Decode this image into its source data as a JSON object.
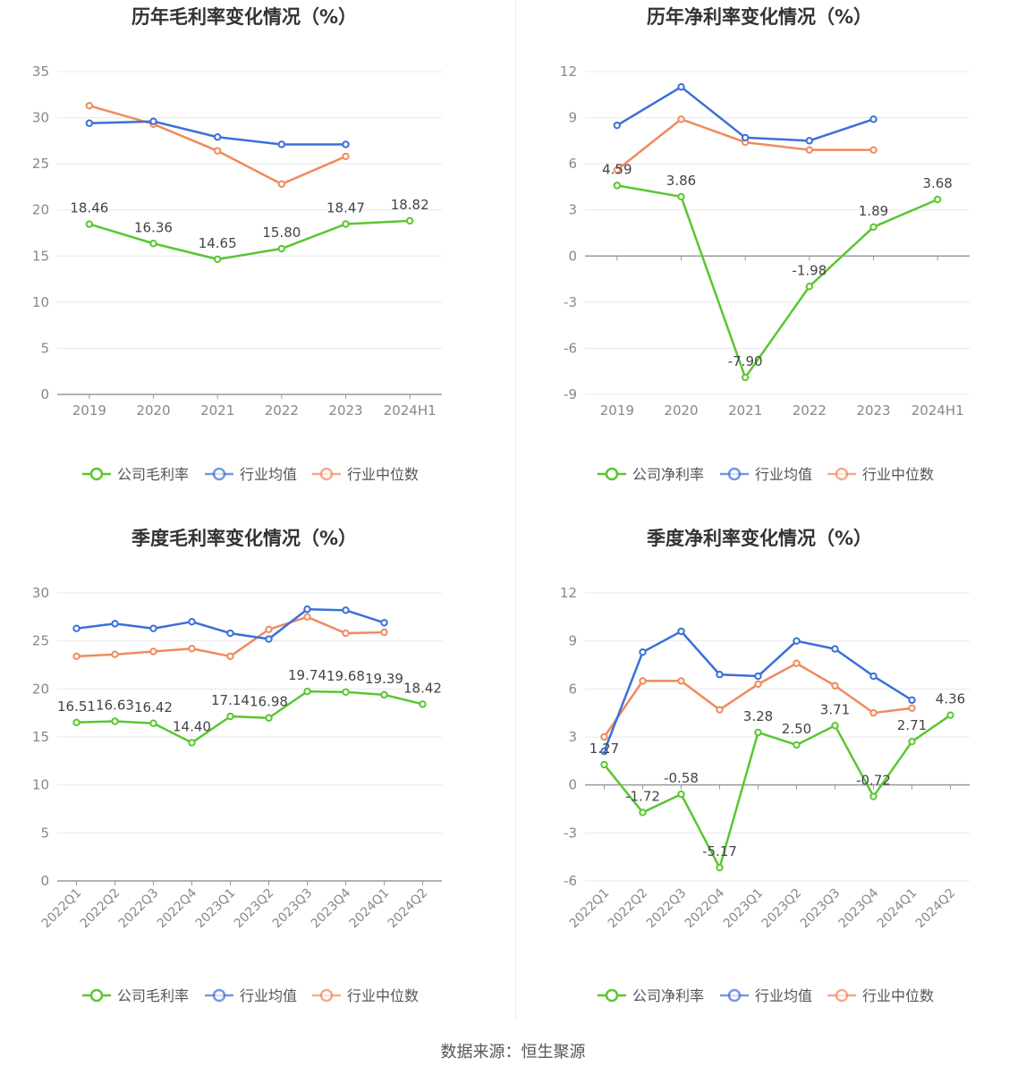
{
  "source": "数据来源：恒生聚源",
  "colors": {
    "company": "#5ac631",
    "avg": "#3b6fd8",
    "median": "#f08a5d",
    "grid": "#e8e8ee",
    "axis": "#999999",
    "tick_text": "#888888",
    "label_text": "#444444"
  },
  "legend": {
    "company_gross": "公司毛利率",
    "company_net": "公司净利率",
    "avg": "行业均值",
    "median": "行业中位数"
  },
  "chart_data": [
    {
      "id": "annual-gross",
      "type": "line",
      "title": "历年毛利率变化情况（%）",
      "categories": [
        "2019",
        "2020",
        "2021",
        "2022",
        "2023",
        "2024H1"
      ],
      "ylim": [
        0,
        35
      ],
      "yticks": [
        0,
        5,
        10,
        15,
        20,
        25,
        30,
        35
      ],
      "series": [
        {
          "name": "公司毛利率",
          "color": "#5ac631",
          "values": [
            18.46,
            16.36,
            14.65,
            15.8,
            18.47,
            18.82
          ],
          "labels": [
            "18.46",
            "16.36",
            "14.65",
            "15.80",
            "18.47",
            "18.82"
          ]
        },
        {
          "name": "行业均值",
          "color": "#3b6fd8",
          "values": [
            29.4,
            29.6,
            27.9,
            27.1,
            27.1,
            null
          ]
        },
        {
          "name": "行业中位数",
          "color": "#f08a5d",
          "values": [
            31.3,
            29.3,
            26.4,
            22.8,
            25.8,
            null
          ]
        }
      ]
    },
    {
      "id": "annual-net",
      "type": "line",
      "title": "历年净利率变化情况（%）",
      "categories": [
        "2019",
        "2020",
        "2021",
        "2022",
        "2023",
        "2024H1"
      ],
      "ylim": [
        -9,
        12
      ],
      "yticks": [
        -9,
        -6,
        -3,
        0,
        3,
        6,
        9,
        12
      ],
      "series": [
        {
          "name": "公司净利率",
          "color": "#5ac631",
          "values": [
            4.59,
            3.86,
            -7.9,
            -1.98,
            1.89,
            3.68
          ],
          "labels": [
            "4.59",
            "3.86",
            "-7.90",
            "-1.98",
            "1.89",
            "3.68"
          ]
        },
        {
          "name": "行业均值",
          "color": "#3b6fd8",
          "values": [
            8.5,
            11.0,
            7.7,
            7.5,
            8.9,
            null
          ]
        },
        {
          "name": "行业中位数",
          "color": "#f08a5d",
          "values": [
            5.6,
            8.9,
            7.4,
            6.9,
            6.9,
            null
          ]
        }
      ]
    },
    {
      "id": "quarterly-gross",
      "type": "line",
      "title": "季度毛利率变化情况（%）",
      "categories": [
        "2022Q1",
        "2022Q2",
        "2022Q3",
        "2022Q4",
        "2023Q1",
        "2023Q2",
        "2023Q3",
        "2023Q4",
        "2024Q1",
        "2024Q2"
      ],
      "ylim": [
        0,
        30
      ],
      "yticks": [
        0,
        5,
        10,
        15,
        20,
        25,
        30
      ],
      "series": [
        {
          "name": "公司毛利率",
          "color": "#5ac631",
          "values": [
            16.51,
            16.63,
            16.42,
            14.4,
            17.14,
            16.98,
            19.74,
            19.68,
            19.39,
            18.42
          ],
          "labels": [
            "16.51",
            "16.63",
            "16.42",
            "14.40",
            "17.14",
            "16.98",
            "19.74",
            "19.68",
            "19.39",
            "18.42"
          ]
        },
        {
          "name": "行业均值",
          "color": "#3b6fd8",
          "values": [
            26.3,
            26.8,
            26.3,
            27.0,
            25.8,
            25.2,
            28.3,
            28.2,
            26.9,
            null
          ]
        },
        {
          "name": "行业中位数",
          "color": "#f08a5d",
          "values": [
            23.4,
            23.6,
            23.9,
            24.2,
            23.4,
            26.2,
            27.5,
            25.8,
            25.9,
            null
          ]
        }
      ]
    },
    {
      "id": "quarterly-net",
      "type": "line",
      "title": "季度净利率变化情况（%）",
      "categories": [
        "2022Q1",
        "2022Q2",
        "2022Q3",
        "2022Q4",
        "2023Q1",
        "2023Q2",
        "2023Q3",
        "2023Q4",
        "2024Q1",
        "2024Q2"
      ],
      "ylim": [
        -6,
        12
      ],
      "yticks": [
        -6,
        -3,
        0,
        3,
        6,
        9,
        12
      ],
      "series": [
        {
          "name": "公司净利率",
          "color": "#5ac631",
          "values": [
            1.27,
            -1.72,
            -0.58,
            -5.17,
            3.28,
            2.5,
            3.71,
            -0.72,
            2.71,
            4.36
          ],
          "labels": [
            "1.27",
            "-1.72",
            "-0.58",
            "-5.17",
            "3.28",
            "2.50",
            "3.71",
            "-0.72",
            "2.71",
            "4.36"
          ]
        },
        {
          "name": "行业均值",
          "color": "#3b6fd8",
          "values": [
            2.1,
            8.3,
            9.6,
            6.9,
            6.8,
            9.0,
            8.5,
            6.8,
            5.3,
            null
          ]
        },
        {
          "name": "行业中位数",
          "color": "#f08a5d",
          "values": [
            3.0,
            6.5,
            6.5,
            4.7,
            6.3,
            7.6,
            6.2,
            4.5,
            4.8,
            null
          ]
        }
      ]
    }
  ]
}
